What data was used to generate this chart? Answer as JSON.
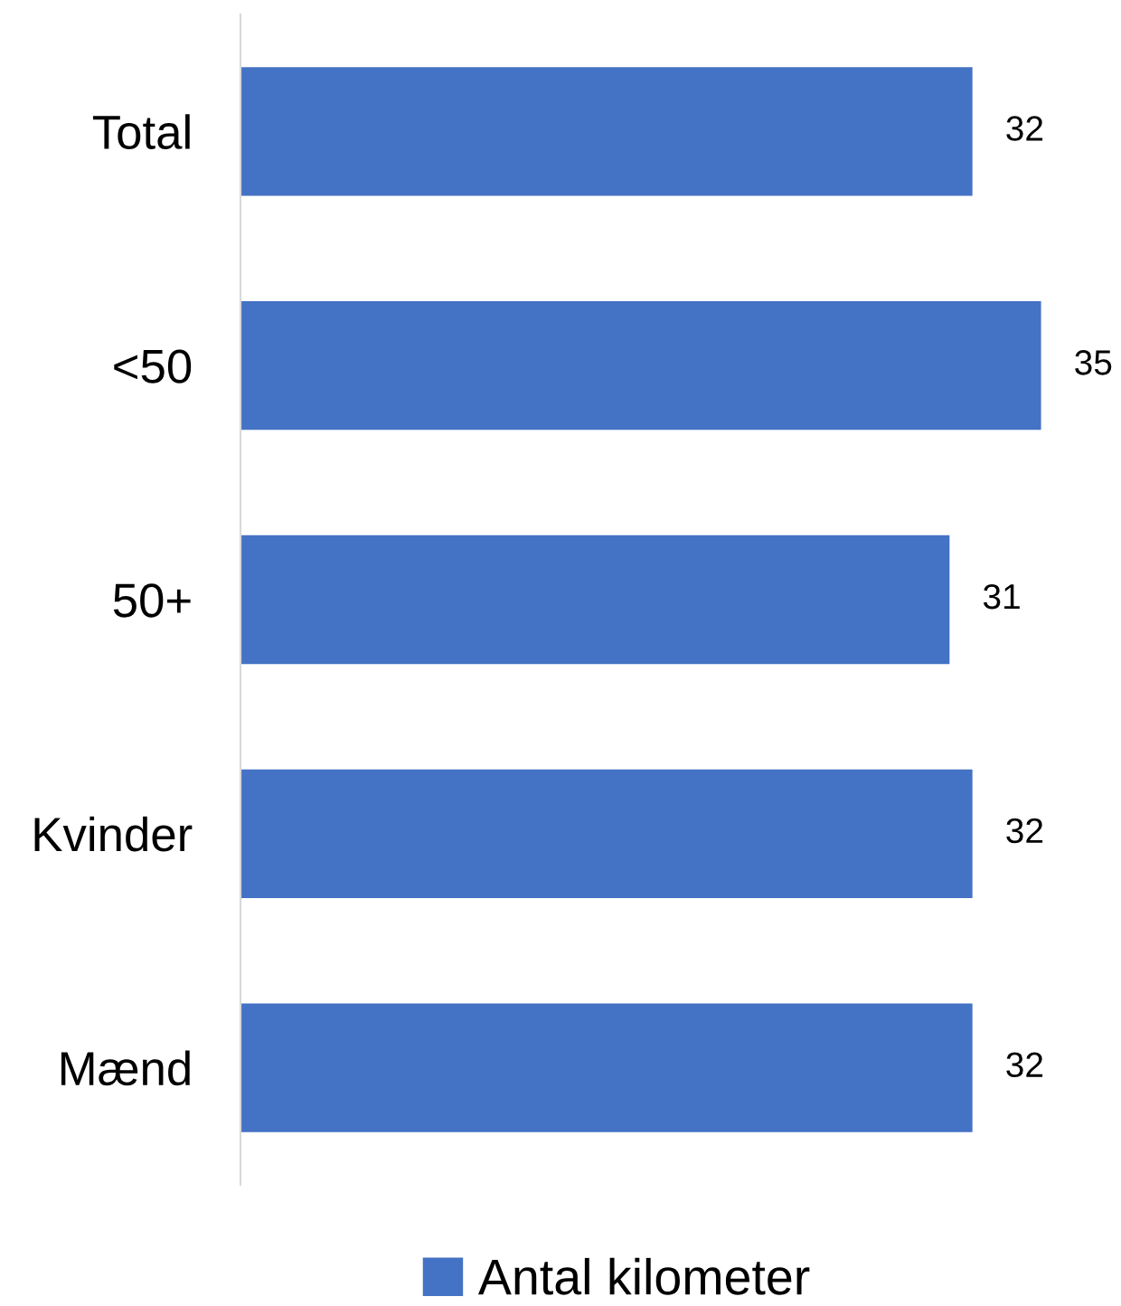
{
  "chart_data": {
    "type": "bar",
    "orientation": "horizontal",
    "categories": [
      "Total",
      "<50",
      "50+",
      "Kvinder",
      "Mænd"
    ],
    "series": [
      {
        "name": "Antal kilometer",
        "color": "#4472c4",
        "values": [
          32,
          35,
          31,
          32,
          32
        ]
      }
    ],
    "data_labels": true,
    "legend": "bottom"
  }
}
